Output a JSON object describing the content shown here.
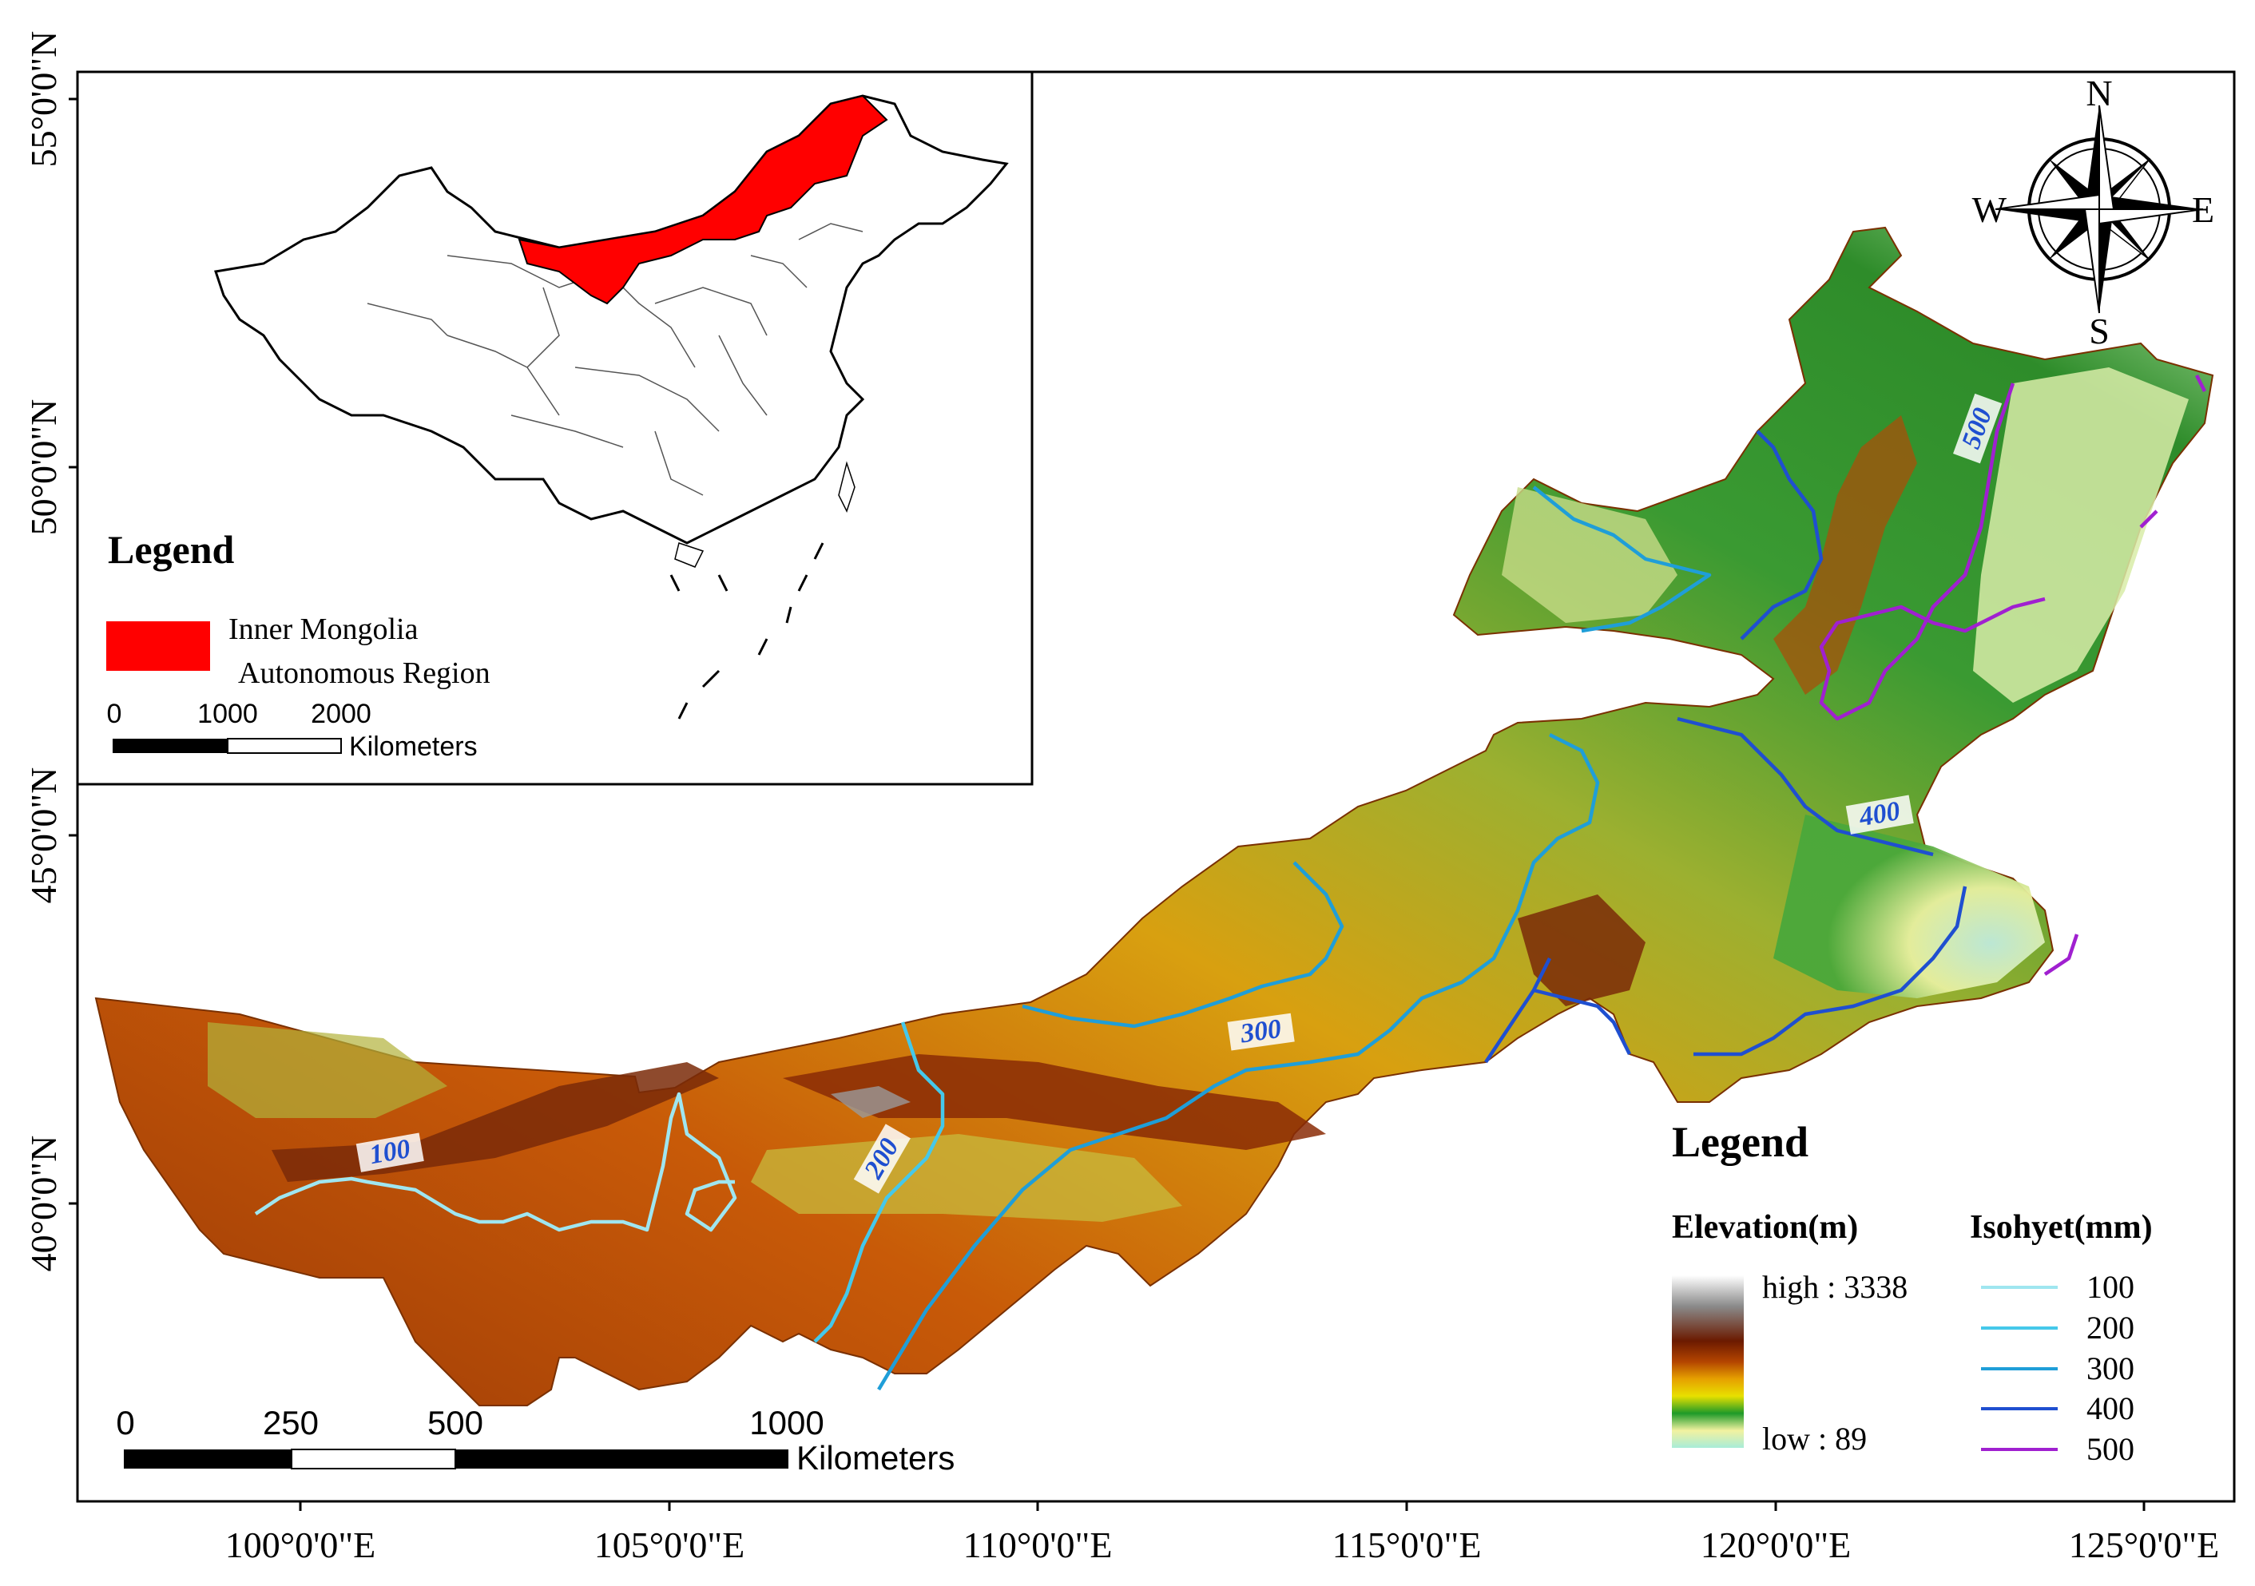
{
  "axes": {
    "latitude_labels": [
      "55°0'0\"N",
      "50°0'0\"N",
      "45°0'0\"N",
      "40°0'0\"N"
    ],
    "longitude_labels": [
      "100°0'0\"E",
      "105°0'0\"E",
      "110°0'0\"E",
      "115°0'0\"E",
      "120°0'0\"E",
      "125°0'0\"E"
    ]
  },
  "inset": {
    "legend_title": "Legend",
    "region_label_line1": "Inner Mongolia",
    "region_label_line2": "Autonomous Region",
    "region_color": "#ff0000",
    "scale_ticks": [
      "0",
      "1000",
      "2000"
    ],
    "scale_unit": "Kilometers"
  },
  "compass": {
    "north": "N",
    "south": "S",
    "east": "E",
    "west": "W"
  },
  "main_scale": {
    "ticks": [
      "0",
      "250",
      "500",
      "1000"
    ],
    "unit": "Kilometers"
  },
  "isohyet_labels": [
    "100",
    "200",
    "300",
    "400",
    "500"
  ],
  "legend": {
    "title": "Legend",
    "elevation_title": "Elevation(m)",
    "elevation_high": "high : 3338",
    "elevation_low": "low : 89",
    "isohyet_title": "Isohyet(mm)",
    "isohyets": [
      {
        "label": "100",
        "color": "#9fe6f0"
      },
      {
        "label": "200",
        "color": "#45c8ea"
      },
      {
        "label": "300",
        "color": "#1f9ed8"
      },
      {
        "label": "400",
        "color": "#1f4fd0"
      },
      {
        "label": "500",
        "color": "#a020d0"
      }
    ]
  },
  "colors": {
    "elevation_ramp": [
      "#ffffff",
      "#8a8a8a",
      "#6b1a00",
      "#b34400",
      "#e6a000",
      "#f2f000",
      "#1e9a28",
      "#f2f2a0",
      "#a8ecd8"
    ]
  }
}
